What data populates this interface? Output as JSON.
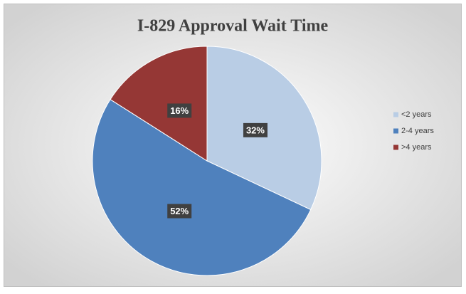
{
  "chart_data": {
    "type": "pie",
    "title": "I-829 Approval Wait Time",
    "categories": [
      "<2 years",
      "2-4 years",
      ">4 years"
    ],
    "values": [
      32,
      52,
      16
    ],
    "value_labels": [
      "32%",
      "52%",
      "16%"
    ],
    "colors": [
      "#b9cde5",
      "#4f81bd",
      "#953735"
    ],
    "legend": "right"
  }
}
